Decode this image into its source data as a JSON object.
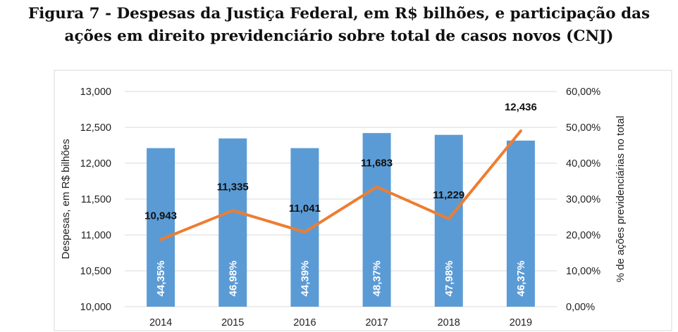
{
  "title_line1": "Figura 7 - Despesas da Justiça Federal, em R$ bilhões, e participação das",
  "title_line2": "ações em direito previdenciário sobre total de casos novos (CNJ)",
  "colors": {
    "bar": "#5b9bd5",
    "line": "#ed7d31",
    "grid": "#d9d9d9"
  },
  "chart_data": {
    "type": "bar",
    "categories": [
      "2014",
      "2015",
      "2016",
      "2017",
      "2018",
      "2019"
    ],
    "bars": {
      "axis": "left",
      "values": [
        12210,
        12345,
        12210,
        12420,
        12395,
        12315
      ],
      "labels": [
        "44,35%",
        "46,98%",
        "44,39%",
        "48,37%",
        "47,98%",
        "46,37%"
      ]
    },
    "line": {
      "axis": "right",
      "values": [
        18.7,
        26.8,
        20.8,
        33.4,
        24.5,
        49.0
      ],
      "labels": [
        "10,943",
        "11,335",
        "11,041",
        "11,683",
        "11,229",
        "12,436"
      ]
    },
    "ylabel": "Despesas, em R$ bilhões",
    "y2label": "% de ações previdenciárias no total",
    "ylim": [
      10000,
      13000
    ],
    "y2lim": [
      0,
      60
    ],
    "yticks": [
      "10,000",
      "10,500",
      "11,000",
      "11,500",
      "12,000",
      "12,500",
      "13,000"
    ],
    "y2ticks": [
      "0,00%",
      "10,00%",
      "20,00%",
      "30,00%",
      "40,00%",
      "50,00%",
      "60,00%"
    ],
    "grid": true,
    "legend": "none"
  }
}
